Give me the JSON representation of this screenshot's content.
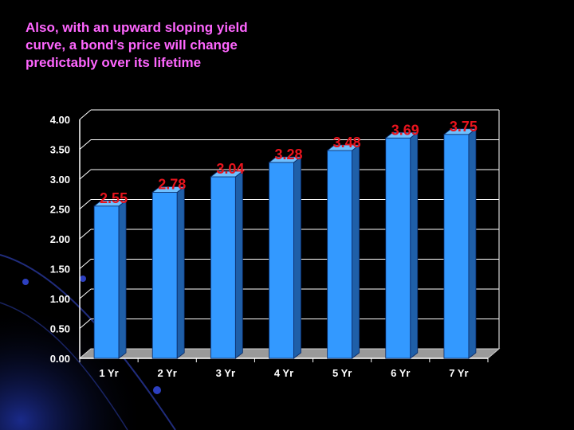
{
  "slide": {
    "title": "Also, with an upward sloping yield\ncurve, a bond’s price will change\npredictably over its lifetime",
    "title_color": "#ff66ff",
    "background_color": "#000000"
  },
  "chart_data": {
    "type": "bar",
    "title": "",
    "xlabel": "",
    "ylabel": "",
    "categories": [
      "1 Yr",
      "2 Yr",
      "3 Yr",
      "4 Yr",
      "5 Yr",
      "6 Yr",
      "7 Yr"
    ],
    "values": [
      2.55,
      2.78,
      3.04,
      3.28,
      3.48,
      3.69,
      3.75
    ],
    "data_labels": [
      "2.55",
      "2.78",
      "3.04",
      "3.28",
      "3.48",
      "3.69",
      "3.75"
    ],
    "ylim": [
      0,
      4
    ],
    "yticks": [
      "0.00",
      "0.50",
      "1.00",
      "1.50",
      "2.00",
      "2.50",
      "3.00",
      "3.50",
      "4.00"
    ],
    "grid": true,
    "legend": "none",
    "bar_color": "#3399ff",
    "bar_side_color": "#1f5fa8",
    "bar_top_color": "#6fc0ff",
    "data_label_color": "#e8141d",
    "style": "3d"
  }
}
